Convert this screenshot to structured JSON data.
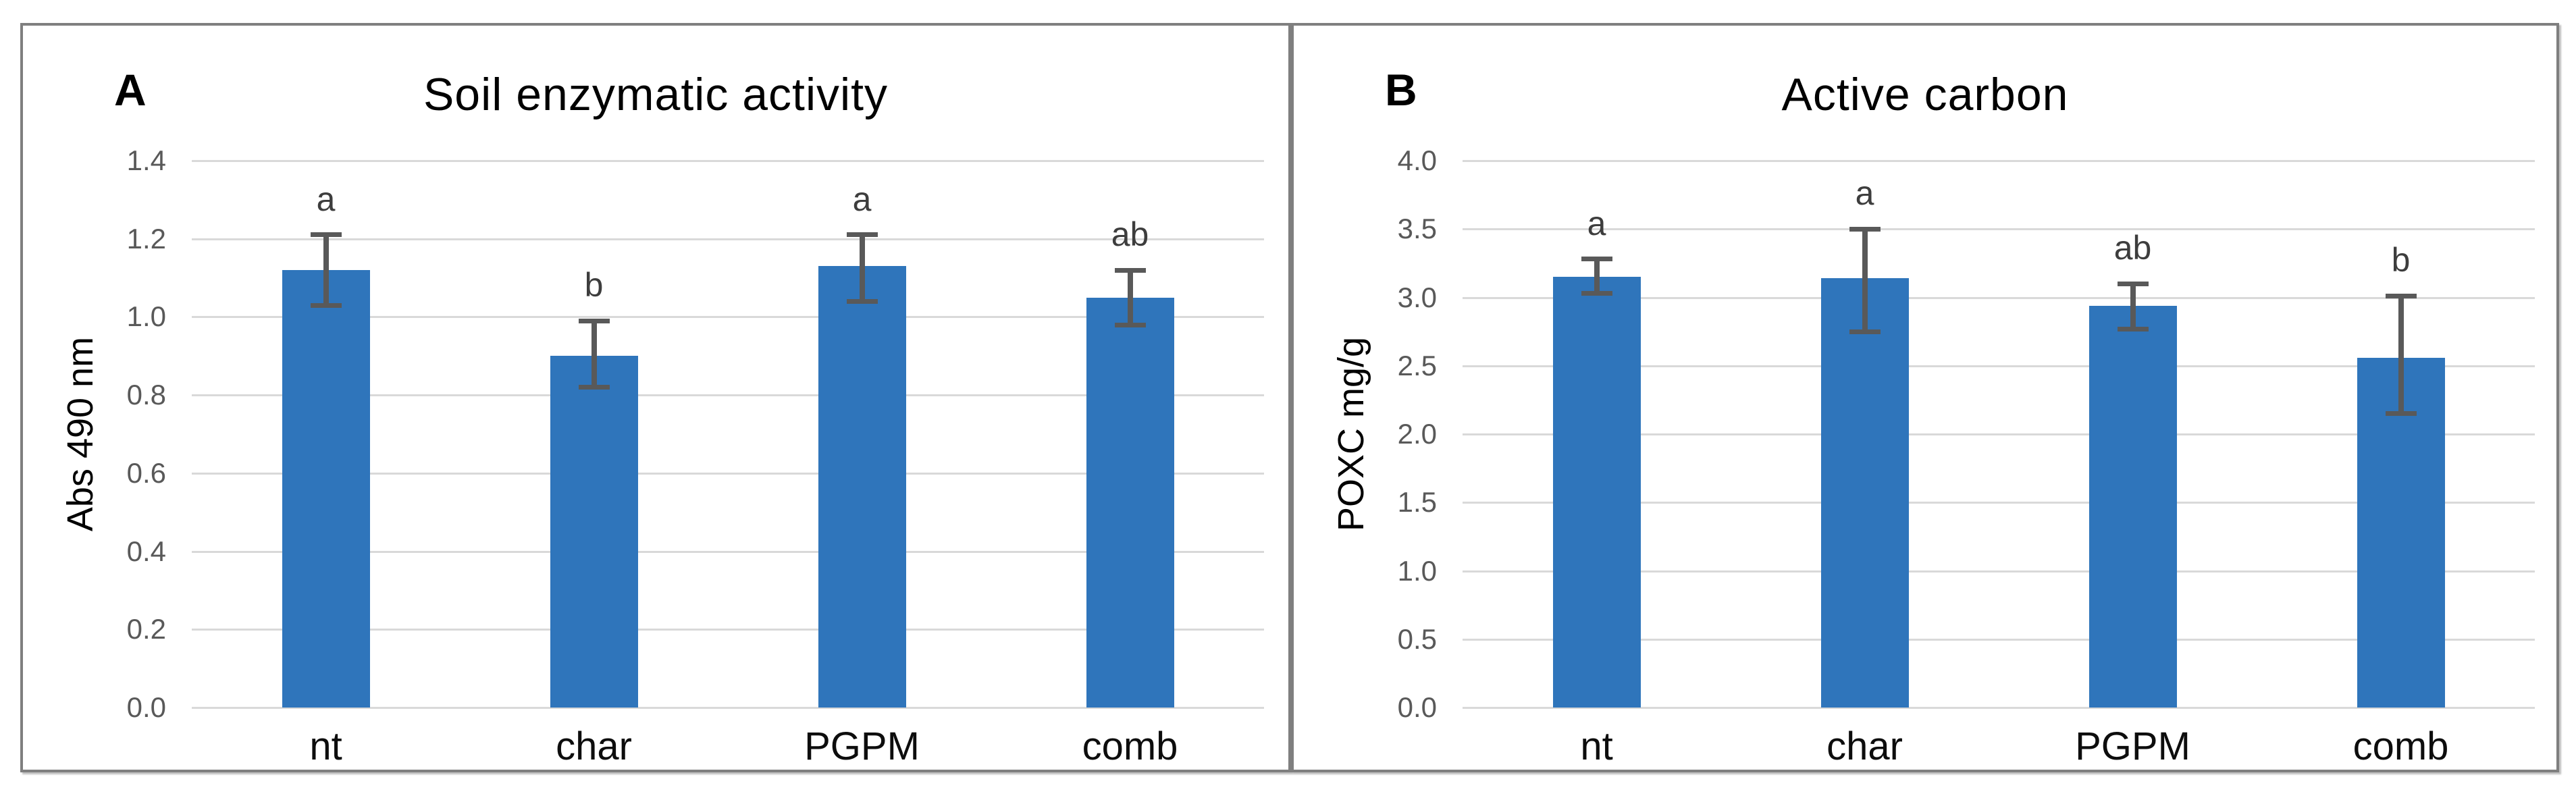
{
  "figure": {
    "background": "#ffffff",
    "panel_border_color": "#7f7f7f"
  },
  "colors": {
    "bar": "#2F75BB",
    "error_bar": "#595959",
    "gridline": "#D9D9D9",
    "tick_label": "#595959",
    "sig_letter": "#3d3d3d",
    "title_text": "#000000"
  },
  "chart_data": [
    {
      "type": "bar",
      "panel_label": "A",
      "title": "Soil enzymatic activity",
      "xlabel": "",
      "ylabel": "Abs 490 nm",
      "categories": [
        "nt",
        "char",
        "PGPM",
        "comb"
      ],
      "values": [
        1.12,
        0.9,
        1.13,
        1.05
      ],
      "error_low": [
        1.03,
        0.82,
        1.04,
        0.98
      ],
      "error_high": [
        1.21,
        0.99,
        1.21,
        1.12
      ],
      "sig_letters": [
        "a",
        "b",
        "a",
        "ab"
      ],
      "ylim": [
        0,
        1.4
      ],
      "yticks": [
        "1.4",
        "1.2",
        "1.0",
        "0.8",
        "0.6",
        "0.4",
        "0.2",
        "0.0"
      ],
      "grid": true,
      "legend": false
    },
    {
      "type": "bar",
      "panel_label": "B",
      "title": "Active carbon",
      "xlabel": "",
      "ylabel": "POXC mg/g",
      "categories": [
        "nt",
        "char",
        "PGPM",
        "comb"
      ],
      "values": [
        3.15,
        3.14,
        2.94,
        2.56
      ],
      "error_low": [
        3.03,
        2.75,
        2.77,
        2.15
      ],
      "error_high": [
        3.28,
        3.5,
        3.1,
        3.01
      ],
      "sig_letters": [
        "a",
        "a",
        "ab",
        "b"
      ],
      "ylim": [
        0,
        4.0
      ],
      "yticks": [
        "4.0",
        "3.5",
        "3.0",
        "2.5",
        "2.0",
        "1.5",
        "1.0",
        "0.5",
        "0.0"
      ],
      "grid": true,
      "legend": false
    }
  ]
}
